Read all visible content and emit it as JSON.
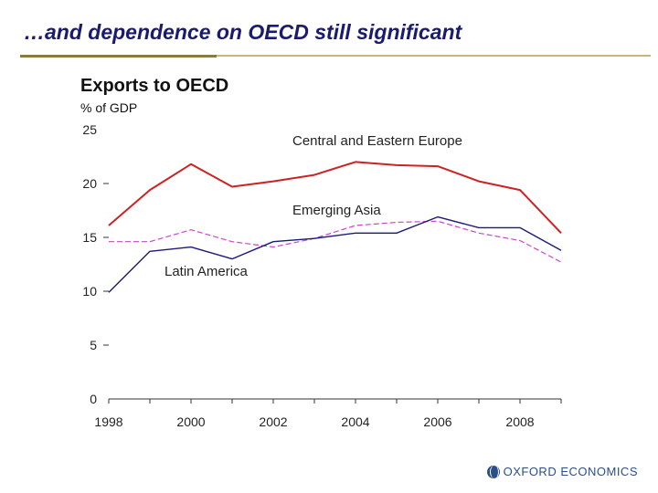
{
  "slide": {
    "title": "…and dependence on OECD still significant",
    "logo_text": "OXFORD ECONOMICS"
  },
  "colors": {
    "cee": "#cc2222",
    "asia": "#cc44cc",
    "latam": "#1a1a7a",
    "title": "#1a1a6e",
    "rule": "#c8b77a"
  },
  "chart_data": {
    "type": "line",
    "title": "Exports to OECD",
    "ylabel": "% of GDP",
    "xlabel": "",
    "ylim": [
      0,
      25
    ],
    "xlim": [
      1998,
      2009
    ],
    "yticks": [
      0,
      5,
      10,
      15,
      20,
      25
    ],
    "xticks": [
      1998,
      2000,
      2002,
      2004,
      2006,
      2008
    ],
    "x": [
      1998,
      1999,
      2000,
      2001,
      2002,
      2003,
      2004,
      2005,
      2006,
      2007,
      2008,
      2009
    ],
    "series": [
      {
        "name": "Central and Eastern Europe",
        "style": "solid",
        "values": [
          16.1,
          19.4,
          21.8,
          19.7,
          20.2,
          20.8,
          22.0,
          21.7,
          21.6,
          20.2,
          19.4,
          15.4
        ]
      },
      {
        "name": "Emerging Asia",
        "style": "dashed",
        "values": [
          14.6,
          14.6,
          15.7,
          14.6,
          14.1,
          14.9,
          16.1,
          16.4,
          16.5,
          15.4,
          14.7,
          12.7
        ]
      },
      {
        "name": "Latin America",
        "style": "solid",
        "values": [
          9.9,
          13.7,
          14.1,
          13.0,
          14.6,
          14.9,
          15.4,
          15.4,
          16.9,
          15.9,
          15.9,
          13.8
        ]
      }
    ]
  }
}
